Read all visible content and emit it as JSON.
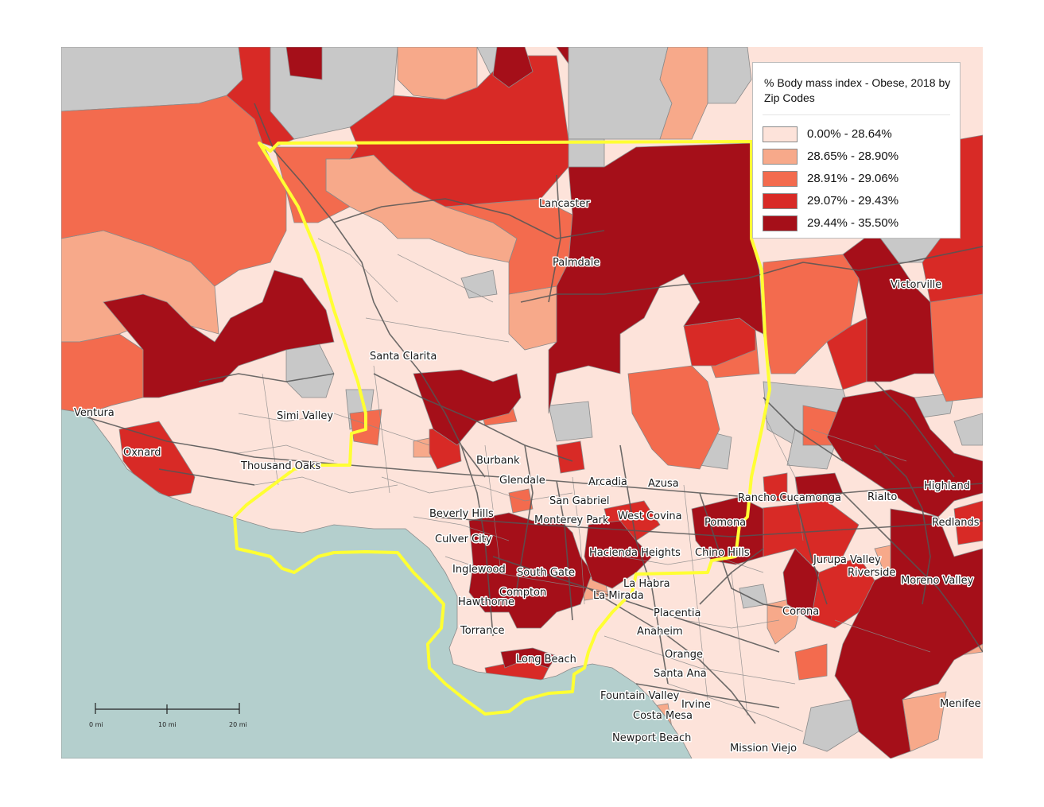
{
  "legend": {
    "title": "% Body mass index - Obese, 2018 by Zip Codes",
    "items": [
      {
        "label": "0.00% - 28.64%",
        "color": "#fde3da"
      },
      {
        "label": "28.65% - 28.90%",
        "color": "#f7a98a"
      },
      {
        "label": "28.91% - 29.06%",
        "color": "#f36b4e"
      },
      {
        "label": "29.07% - 29.43%",
        "color": "#d82a26"
      },
      {
        "label": "29.44% - 35.50%",
        "color": "#a50f19"
      }
    ]
  },
  "colors": {
    "no_data": "#c8c8c8",
    "ocean": "#b4cfcd",
    "county_boundary": "#ffff33",
    "roads": "#555555",
    "zip_borders": "#7f7f7f"
  },
  "scale_bar": {
    "labels": [
      "0 mi",
      "10 mi",
      "20 mi"
    ]
  },
  "cities": [
    "Lancaster",
    "Palmdale",
    "Victorville",
    "Santa Clarita",
    "Ventura",
    "Simi Valley",
    "Oxnard",
    "Thousand Oaks",
    "Burbank",
    "Glendale",
    "Arcadia",
    "Azusa",
    "Highland",
    "San Gabriel",
    "Rancho Cucamonga",
    "Rialto",
    "Beverly Hills",
    "West Covina",
    "Monterey Park",
    "Pomona",
    "Redlands",
    "Culver City",
    "Hacienda Heights",
    "Chino Hills",
    "Jurupa Valley",
    "Inglewood",
    "South Gate",
    "Riverside",
    "Moreno Valley",
    "La Habra",
    "Compton",
    "La Mirada",
    "Hawthorne",
    "Placentia",
    "Corona",
    "Torrance",
    "Anaheim",
    "Orange",
    "Long Beach",
    "Santa Ana",
    "Fountain Valley",
    "Irvine",
    "Menifee",
    "Costa Mesa",
    "Newport Beach",
    "Mission Viejo"
  ]
}
